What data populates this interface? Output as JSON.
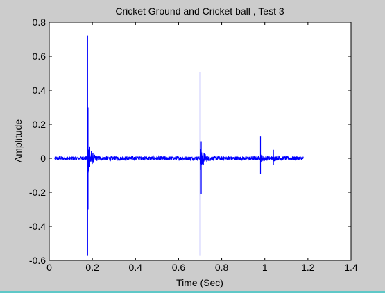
{
  "chart_data": {
    "type": "line",
    "title": "Cricket Ground and Cricket ball , Test 3",
    "xlabel": "Time (Sec)",
    "ylabel": "Amplitude",
    "xlim": [
      0,
      1.4
    ],
    "ylim": [
      -0.6,
      0.8
    ],
    "grid": false,
    "x_ticks": [
      0,
      0.2,
      0.4,
      0.6,
      0.8,
      1,
      1.2,
      1.4
    ],
    "x_tick_labels": [
      "0",
      "0.2",
      "0.4",
      "0.6",
      "0.8",
      "1",
      "1.2",
      "1.4"
    ],
    "y_ticks": [
      0.8,
      0.6,
      0.4,
      0.2,
      0,
      -0.2,
      -0.4,
      -0.6
    ],
    "y_tick_labels": [
      "0.8",
      "0.6",
      "0.4",
      "0.2",
      "0",
      "-0.2",
      "-0.4",
      "-0.6"
    ],
    "series": [
      {
        "color": "#0000ff",
        "x_range": [
          0.025,
          1.18
        ],
        "noise_amplitude": 0.012,
        "events": [
          {
            "x": 0.178,
            "peak": 0.72,
            "trough": -0.57
          },
          {
            "x": 0.18,
            "peak": 0.3,
            "trough": -0.3
          },
          {
            "x": 0.188,
            "peak": 0.07,
            "trough": -0.05
          },
          {
            "x": 0.7,
            "peak": 0.51,
            "trough": -0.57
          },
          {
            "x": 0.705,
            "peak": 0.1,
            "trough": -0.21
          },
          {
            "x": 0.98,
            "peak": 0.13,
            "trough": -0.09
          },
          {
            "x": 1.04,
            "peak": 0.05,
            "trough": -0.04
          }
        ]
      }
    ]
  }
}
